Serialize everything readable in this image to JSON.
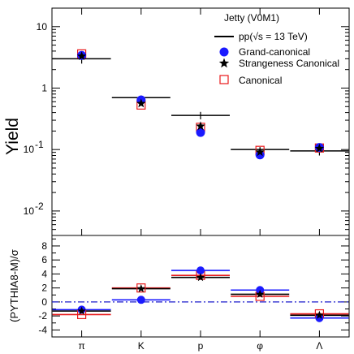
{
  "chart_data": [
    {
      "type": "scatter",
      "panel": "top",
      "ylabel": "Yield",
      "yscale": "log",
      "ylim": [
        0.004,
        20
      ],
      "y_ticks": [
        {
          "value": 10,
          "label": "10"
        },
        {
          "value": 1,
          "label": "1"
        },
        {
          "value": 0.1,
          "label": "10^-1",
          "base": "10",
          "exp": "-1"
        },
        {
          "value": 0.01,
          "label": "10^-2",
          "base": "10",
          "exp": "-2"
        }
      ],
      "categories": [
        "π",
        "K",
        "p",
        "φ",
        "Λ"
      ],
      "legend": {
        "title": "Jetty (V0M1)",
        "entries": [
          "pp(√s = 13 TeV)",
          "Grand-canonical",
          "Strangeness Canonical",
          "Canonical"
        ],
        "placement": "top-right"
      },
      "series": [
        {
          "name": "pp(√s = 13 TeV)",
          "marker": "hline-errorbar",
          "values": [
            3.0,
            0.7,
            0.36,
            0.1,
            0.095
          ],
          "errors": [
            0.5,
            0.06,
            0.05,
            0.01,
            0.015
          ]
        },
        {
          "name": "Grand-canonical",
          "marker": "circle",
          "color": "#1a1aff",
          "values": [
            3.4,
            0.64,
            0.19,
            0.082,
            0.108
          ]
        },
        {
          "name": "Strangeness Canonical",
          "marker": "star",
          "color": "#000000",
          "values": [
            3.3,
            0.56,
            0.24,
            0.091,
            0.104
          ]
        },
        {
          "name": "Canonical",
          "marker": "open-square",
          "color": "#e8191b",
          "values": [
            3.6,
            0.53,
            0.23,
            0.097,
            0.106
          ]
        }
      ]
    },
    {
      "type": "scatter",
      "panel": "bottom",
      "ylabel": "(PYTHIA8-M)/σ",
      "ylim": [
        -5,
        9.5
      ],
      "y_tick_labels": [
        "-4",
        "-2",
        "0",
        "2",
        "4",
        "6",
        "8"
      ],
      "categories": [
        "π",
        "K",
        "p",
        "φ",
        "Λ"
      ],
      "reference_line": {
        "value": 0,
        "style": "dash-dot",
        "color": "#1a1acc"
      },
      "series": [
        {
          "name": "Grand-canonical",
          "color": "#1a1aff",
          "values": [
            -1.1,
            0.3,
            4.5,
            1.7,
            -2.3
          ]
        },
        {
          "name": "Strangeness Canonical",
          "color": "#000000",
          "values": [
            -1.3,
            1.9,
            3.5,
            1.1,
            -1.9
          ]
        },
        {
          "name": "Canonical",
          "color": "#e8191b",
          "values": [
            -1.8,
            2.0,
            3.8,
            0.8,
            -1.7
          ]
        }
      ]
    }
  ]
}
